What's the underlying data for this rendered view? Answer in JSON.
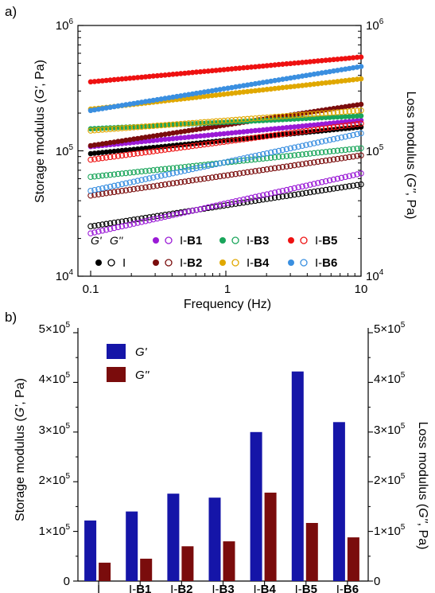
{
  "panel_a": {
    "label": "a)",
    "ylabel_left_parts": [
      "Storage modulus (",
      "G'",
      ", Pa)"
    ],
    "ylabel_right_parts": [
      "Loss modulus (",
      "G''",
      ", Pa)"
    ],
    "xlabel": "Frequency (Hz)",
    "y_ticks_left": [
      "10",
      "10",
      "10"
    ],
    "y_ticks_right": [
      "10",
      "10",
      "10"
    ],
    "y_tick_exponents": [
      "6",
      "5",
      "4"
    ],
    "x_ticks": [
      "0.1",
      "1",
      "10"
    ],
    "legend_header_g1": "G'",
    "legend_header_g2": "G''",
    "legend": [
      {
        "prefix": "I",
        "suffix": "",
        "color": "#000000"
      },
      {
        "prefix": "I-",
        "suffix": "B1",
        "color": "#9a1ad6"
      },
      {
        "prefix": "I-",
        "suffix": "B2",
        "color": "#7a0c0c"
      },
      {
        "prefix": "I-",
        "suffix": "B3",
        "color": "#19a55a"
      },
      {
        "prefix": "I-",
        "suffix": "B4",
        "color": "#e0a800"
      },
      {
        "prefix": "I-",
        "suffix": "B5",
        "color": "#ee1111"
      },
      {
        "prefix": "I-",
        "suffix": "B6",
        "color": "#3a8fe0"
      }
    ]
  },
  "panel_b": {
    "label": "b)",
    "ylabel_left_parts": [
      "Storage modulus (",
      "G'",
      ", Pa)"
    ],
    "ylabel_right_parts": [
      "Loss modulus (",
      "G''",
      ", Pa)"
    ],
    "y_tick_mantissas": [
      "5×10",
      "4×10",
      "3×10",
      "2×10",
      "1×10",
      "0"
    ],
    "y_tick_exponent": "5",
    "legend_g1": "G'",
    "legend_g2": "G''",
    "categories": [
      {
        "prefix": "I",
        "suffix": ""
      },
      {
        "prefix": "I-",
        "suffix": "B1"
      },
      {
        "prefix": "I-",
        "suffix": "B2"
      },
      {
        "prefix": "I-",
        "suffix": "B3"
      },
      {
        "prefix": "I-",
        "suffix": "B4"
      },
      {
        "prefix": "I-",
        "suffix": "B5"
      },
      {
        "prefix": "I-",
        "suffix": "B6"
      }
    ]
  },
  "chart_data": [
    {
      "type": "scatter",
      "xlabel": "Frequency (Hz)",
      "ylabel": "Storage modulus (G', Pa)",
      "ylabel_right": "Loss modulus (G'', Pa)",
      "x_scale": "log",
      "y_scale": "log",
      "xlim": [
        0.1,
        10
      ],
      "ylim": [
        10000,
        1000000
      ],
      "legend_placement": "bottom-inside",
      "series": [
        {
          "name": "I",
          "color": "#000000",
          "G1_start": 95000,
          "G1_end": 155000,
          "G2_start": 25000,
          "G2_end": 54000
        },
        {
          "name": "I-B1",
          "color": "#9a1ad6",
          "G1_start": 108000,
          "G1_end": 175000,
          "G2_start": 22000,
          "G2_end": 66000
        },
        {
          "name": "I-B2",
          "color": "#7a0c0c",
          "G1_start": 110000,
          "G1_end": 235000,
          "G2_start": 44000,
          "G2_end": 92000
        },
        {
          "name": "I-B3",
          "color": "#19a55a",
          "G1_start": 150000,
          "G1_end": 190000,
          "G2_start": 62000,
          "G2_end": 105000
        },
        {
          "name": "I-B4",
          "color": "#e0a800",
          "G1_start": 215000,
          "G1_end": 375000,
          "G2_start": 145000,
          "G2_end": 210000
        },
        {
          "name": "I-B5",
          "color": "#ee1111",
          "G1_start": 355000,
          "G1_end": 560000,
          "G2_start": 85000,
          "G2_end": 165000
        },
        {
          "name": "I-B6",
          "color": "#3a8fe0",
          "G1_start": 210000,
          "G1_end": 470000,
          "G2_start": 48000,
          "G2_end": 138000
        }
      ]
    },
    {
      "type": "bar",
      "categories": [
        "I",
        "I-B1",
        "I-B2",
        "I-B3",
        "I-B4",
        "I-B5",
        "I-B6"
      ],
      "ylabel": "Storage modulus (G', Pa)",
      "ylabel_right": "Loss modulus (G'', Pa)",
      "ylim": [
        0,
        500000
      ],
      "legend_placement": "top-left",
      "series": [
        {
          "name": "G'",
          "color": "#1515a8",
          "values": [
            122000,
            140000,
            176000,
            168000,
            300000,
            422000,
            320000
          ]
        },
        {
          "name": "G''",
          "color": "#7a0c0c",
          "values": [
            37000,
            45000,
            70000,
            80000,
            178000,
            117000,
            88000
          ]
        }
      ]
    }
  ]
}
